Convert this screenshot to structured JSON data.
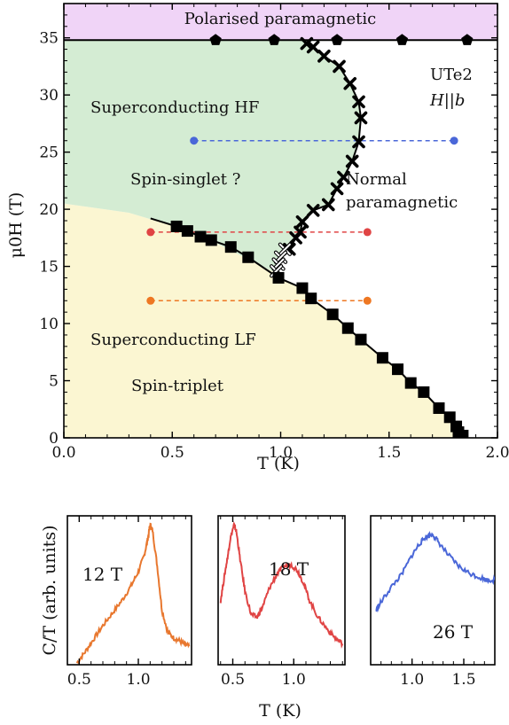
{
  "chart_data": [
    {
      "type": "scatter",
      "xlabel": "T (K)",
      "ylabel": "μ0H (T)",
      "xlim": [
        0.0,
        2.0
      ],
      "ylim": [
        0,
        38
      ],
      "xticks": [
        "0.0",
        "0.5",
        "1.0",
        "1.5",
        "2.0"
      ],
      "yticks": [
        "0",
        "5",
        "10",
        "15",
        "20",
        "25",
        "30",
        "35"
      ],
      "legend": "none",
      "grid": false,
      "regions": [
        {
          "label": "Polarised paramagnetic",
          "color": "#f0d4f7"
        },
        {
          "label": "Superconducting HF",
          "color": "#d4ecd3"
        },
        {
          "label": "Spin-singlet ?",
          "color": "#d4ecd3"
        },
        {
          "label": "Superconducting LF",
          "color": "#fbf6d2"
        },
        {
          "label": "Spin-triplet",
          "color": "#fbf6d2"
        },
        {
          "label": "Normal paramagnetic",
          "color": "#ffffff"
        }
      ],
      "normal_label_lines": [
        "Normal",
        "paramagnetic"
      ],
      "sample_label": "UTe2",
      "field_label": "H||b",
      "polarised_boundary": 34.8,
      "lf_boundary_curve": [
        [
          0,
          20.5
        ],
        [
          0.3,
          19.7
        ],
        [
          0.6,
          18.0
        ],
        [
          0.96,
          14.6
        ]
      ],
      "series": [
        {
          "marker": "pentagon",
          "color": "#000000",
          "points": [
            [
              0.7,
              34.8
            ],
            [
              0.97,
              34.8
            ],
            [
              1.26,
              34.8
            ],
            [
              1.56,
              34.8
            ],
            [
              1.86,
              34.8
            ]
          ]
        },
        {
          "marker": "x",
          "color": "#000000",
          "points": [
            [
              1.12,
              34.5
            ],
            [
              1.15,
              34.2
            ],
            [
              1.2,
              33.4
            ],
            [
              1.27,
              32.5
            ],
            [
              1.32,
              31.0
            ],
            [
              1.36,
              29.4
            ],
            [
              1.37,
              28.0
            ],
            [
              1.36,
              25.9
            ],
            [
              1.33,
              24.2
            ],
            [
              1.29,
              22.8
            ],
            [
              1.26,
              21.8
            ],
            [
              1.22,
              20.4
            ],
            [
              1.15,
              19.9
            ],
            [
              1.1,
              18.9
            ],
            [
              1.09,
              18.0
            ],
            [
              1.07,
              17.5
            ],
            [
              1.04,
              16.5
            ]
          ]
        },
        {
          "marker": "x-open",
          "color": "#000000",
          "points": [
            [
              1.02,
              16.5
            ],
            [
              1.0,
              15.8
            ],
            [
              0.99,
              15.2
            ],
            [
              0.98,
              14.6
            ]
          ]
        },
        {
          "marker": "square",
          "color": "#000000",
          "points": [
            [
              0.52,
              18.5
            ],
            [
              0.57,
              18.1
            ],
            [
              0.63,
              17.6
            ],
            [
              0.68,
              17.3
            ],
            [
              0.77,
              16.7
            ],
            [
              0.85,
              15.8
            ],
            [
              0.99,
              14.0
            ],
            [
              1.1,
              13.1
            ],
            [
              1.14,
              12.2
            ],
            [
              1.24,
              10.8
            ],
            [
              1.31,
              9.6
            ],
            [
              1.37,
              8.6
            ],
            [
              1.47,
              7.0
            ],
            [
              1.54,
              6.0
            ],
            [
              1.6,
              4.8
            ],
            [
              1.66,
              4.0
            ],
            [
              1.73,
              2.6
            ],
            [
              1.78,
              1.8
            ],
            [
              1.81,
              1.0
            ],
            [
              1.82,
              0.5
            ],
            [
              1.84,
              0.2
            ]
          ]
        }
      ],
      "cuts": [
        {
          "field": 26,
          "x": [
            0.6,
            1.8
          ],
          "color": "#4a67d8"
        },
        {
          "field": 18,
          "x": [
            0.4,
            1.4
          ],
          "color": "#e04444"
        },
        {
          "field": 12,
          "x": [
            0.4,
            1.4
          ],
          "color": "#ee7722"
        }
      ]
    },
    {
      "type": "line",
      "label": "12 T",
      "color": "#e8772e",
      "xlim": [
        0.4,
        1.45
      ],
      "xticks": [
        "0.5",
        "1.0"
      ],
      "x": [
        0.48,
        0.55,
        0.62,
        0.7,
        0.78,
        0.86,
        0.94,
        1.0,
        1.05,
        1.08,
        1.1,
        1.12,
        1.16,
        1.2,
        1.25,
        1.3,
        1.35,
        1.4,
        1.43
      ],
      "y": [
        0.0,
        0.08,
        0.17,
        0.27,
        0.36,
        0.45,
        0.56,
        0.66,
        0.78,
        0.9,
        1.0,
        0.96,
        0.7,
        0.38,
        0.22,
        0.18,
        0.16,
        0.13,
        0.12
      ]
    },
    {
      "type": "line",
      "label": "18 T",
      "color": "#e04444",
      "xlim": [
        0.38,
        1.42
      ],
      "xticks": [
        "0.5",
        "1.0"
      ],
      "x": [
        0.4,
        0.43,
        0.46,
        0.48,
        0.51,
        0.53,
        0.56,
        0.6,
        0.65,
        0.7,
        0.75,
        0.8,
        0.86,
        0.92,
        0.98,
        1.03,
        1.08,
        1.13,
        1.2,
        1.27,
        1.34,
        1.4
      ],
      "y": [
        0.45,
        0.62,
        0.78,
        0.9,
        1.0,
        0.95,
        0.75,
        0.52,
        0.35,
        0.33,
        0.42,
        0.54,
        0.64,
        0.7,
        0.71,
        0.67,
        0.58,
        0.45,
        0.33,
        0.25,
        0.18,
        0.14
      ]
    },
    {
      "type": "line",
      "label": "26 T",
      "color": "#4a67d8",
      "xlim": [
        0.6,
        1.8
      ],
      "xticks": [
        "1.0",
        "1.5"
      ],
      "x": [
        0.65,
        0.7,
        0.8,
        0.9,
        1.0,
        1.07,
        1.13,
        1.2,
        1.25,
        1.35,
        1.45,
        1.55,
        1.65,
        1.72,
        1.8
      ],
      "y": [
        0.38,
        0.44,
        0.55,
        0.64,
        0.78,
        0.86,
        0.91,
        0.93,
        0.88,
        0.78,
        0.7,
        0.65,
        0.62,
        0.6,
        0.6
      ]
    }
  ],
  "panel_axes": {
    "ylabel": "C/T (arb. units)",
    "xlabel": "T (K)"
  }
}
